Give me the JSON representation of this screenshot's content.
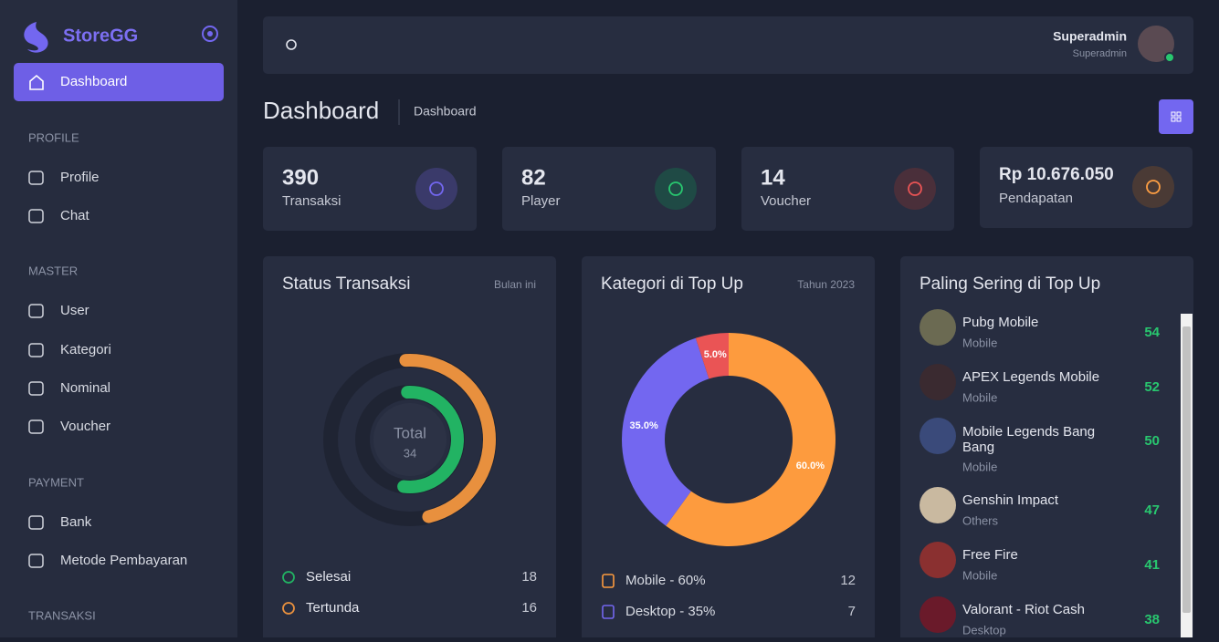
{
  "sidebar": {
    "brand": "StoreGG",
    "active": "Dashboard",
    "sections": [
      {
        "heading": "PROFILE",
        "items": [
          "Profile",
          "Chat"
        ]
      },
      {
        "heading": "MASTER",
        "items": [
          "User",
          "Kategori",
          "Nominal",
          "Voucher"
        ]
      },
      {
        "heading": "PAYMENT",
        "items": [
          "Bank",
          "Metode Pembayaran"
        ]
      },
      {
        "heading": "TRANSAKSI",
        "items": []
      }
    ]
  },
  "header": {
    "user_name": "Superadmin",
    "user_role": "Superadmin"
  },
  "page": {
    "title": "Dashboard",
    "breadcrumb": "Dashboard"
  },
  "stats": [
    {
      "value": 390,
      "label": "Transaksi"
    },
    {
      "value": 82,
      "label": "Player"
    },
    {
      "value": 14,
      "label": "Voucher"
    },
    {
      "value": "Rp 10.676.050",
      "label": "Pendapatan"
    }
  ],
  "chart_data": [
    {
      "type": "radialBar",
      "title": "Status Transaksi",
      "subtitle": "Bulan ini",
      "center_label": "Total",
      "total": 34,
      "categories": [
        "Selesai",
        "Tertunda"
      ],
      "values": [
        18,
        16
      ],
      "colors": [
        "#22b363",
        "#e8903e"
      ]
    },
    {
      "type": "donut",
      "title": "Kategori di Top Up",
      "subtitle": "Tahun 2023",
      "categories": [
        "Mobile",
        "Desktop",
        null
      ],
      "values": [
        60,
        35,
        5
      ],
      "value_labels": [
        "60.0%",
        "35.0%",
        "5.0%"
      ],
      "colors": [
        "#fd9b3e",
        "#7367f0",
        "#ea5455"
      ],
      "legend": [
        {
          "label": "Mobile - 60%",
          "count": 12
        },
        {
          "label": "Desktop - 35%",
          "count": 7
        }
      ]
    }
  ],
  "top_games": {
    "title": "Paling Sering di Top Up",
    "items": [
      {
        "name": "Pubg Mobile",
        "category": "Mobile",
        "count": 54
      },
      {
        "name": "APEX Legends Mobile",
        "category": "Mobile",
        "count": 52
      },
      {
        "name": "Mobile Legends Bang Bang",
        "category": "Mobile",
        "count": 50
      },
      {
        "name": "Genshin Impact",
        "category": "Others",
        "count": 47
      },
      {
        "name": "Free Fire",
        "category": "Mobile",
        "count": 41
      },
      {
        "name": "Valorant - Riot Cash",
        "category": "Desktop",
        "count": 38
      }
    ]
  }
}
